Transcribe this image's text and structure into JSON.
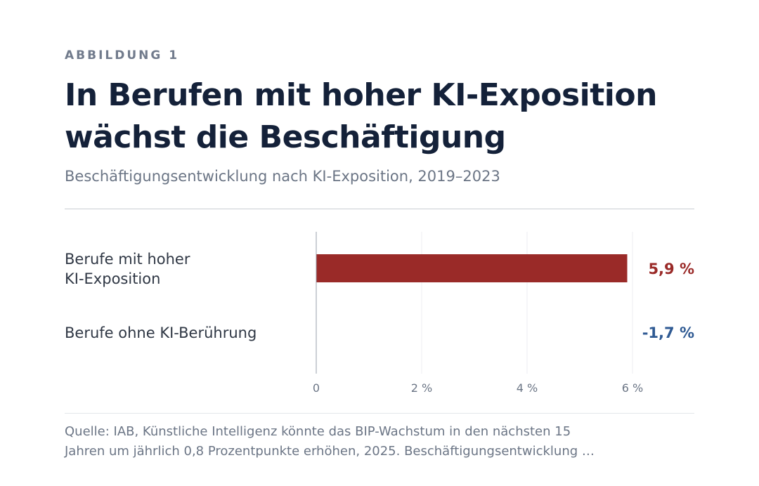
{
  "header": {
    "eyebrow": "ABBILDUNG 1",
    "title_line1": "In Berufen mit hoher KI-Exposition",
    "title_line2": "wächst die Beschäftigung",
    "subtitle": "Beschäftigungsentwicklung nach KI-Exposition, 2019–2023"
  },
  "chart_data": {
    "type": "bar",
    "orientation": "horizontal",
    "title": "In Berufen mit hoher KI-Exposition wächst die Beschäftigung",
    "subtitle": "Beschäftigungsentwicklung nach KI-Exposition, 2019–2023",
    "categories": [
      [
        "Berufe mit hoher",
        "KI-Exposition"
      ],
      [
        "Berufe ohne KI-Berührung"
      ]
    ],
    "values": [
      5.9,
      -1.7
    ],
    "value_labels": [
      "5,9 %",
      "-1,7 %"
    ],
    "colors": [
      "#9a2a28",
      "#2f5a93"
    ],
    "xlim": [
      0,
      7
    ],
    "xticks": [
      0,
      2,
      4,
      6
    ],
    "xtick_labels": [
      "0",
      "2 %",
      "4 %",
      "6 %"
    ],
    "grid": true,
    "xlabel": "",
    "ylabel": ""
  },
  "footer": {
    "source_line1": "Quelle: IAB, Künstliche Intelligenz könnte das BIP-Wachstum in den nächsten 15",
    "source_line2": "Jahren um jährlich 0,8 Prozentpunkte erhöhen, 2025. Beschäftigungsentwicklung …"
  }
}
